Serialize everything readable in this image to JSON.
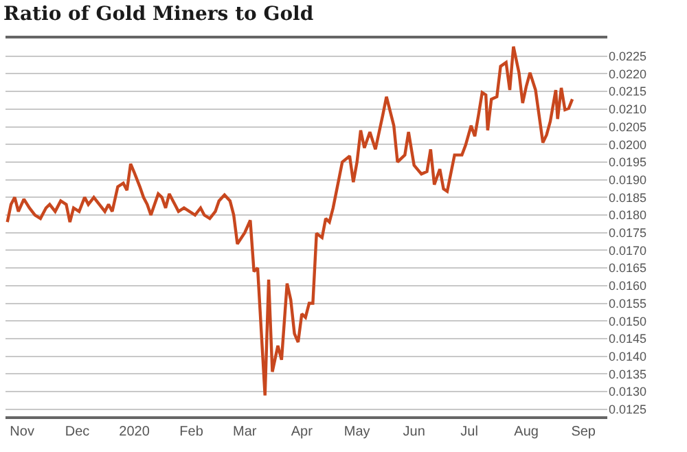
{
  "chart_data": {
    "type": "line",
    "title": "Ratio of Gold Miners to Gold",
    "x": [
      "2019-10-24",
      "2019-10-26",
      "2019-10-28",
      "2019-10-30",
      "2019-11-02",
      "2019-11-05",
      "2019-11-08",
      "2019-11-11",
      "2019-11-14",
      "2019-11-16",
      "2019-11-19",
      "2019-11-22",
      "2019-11-25",
      "2019-11-27",
      "2019-11-29",
      "2019-12-02",
      "2019-12-05",
      "2019-12-07",
      "2019-12-10",
      "2019-12-13",
      "2019-12-16",
      "2019-12-18",
      "2019-12-20",
      "2019-12-23",
      "2019-12-26",
      "2019-12-28",
      "2019-12-30",
      "2020-01-01",
      "2020-01-04",
      "2020-01-06",
      "2020-01-08",
      "2020-01-10",
      "2020-01-12",
      "2020-01-14",
      "2020-01-16",
      "2020-01-18",
      "2020-01-20",
      "2020-01-23",
      "2020-01-25",
      "2020-01-28",
      "2020-01-31",
      "2020-02-03",
      "2020-02-06",
      "2020-02-08",
      "2020-02-11",
      "2020-02-14",
      "2020-02-16",
      "2020-02-19",
      "2020-02-22",
      "2020-02-24",
      "2020-02-26",
      "2020-03-01",
      "2020-03-04",
      "2020-03-06",
      "2020-03-08",
      "2020-03-12",
      "2020-03-14",
      "2020-03-16",
      "2020-03-19",
      "2020-03-21",
      "2020-03-24",
      "2020-03-26",
      "2020-03-28",
      "2020-03-30",
      "2020-04-01",
      "2020-04-03",
      "2020-04-05",
      "2020-04-07",
      "2020-04-09",
      "2020-04-12",
      "2020-04-14",
      "2020-04-16",
      "2020-04-18",
      "2020-04-23",
      "2020-04-27",
      "2020-04-29",
      "2020-05-01",
      "2020-05-03",
      "2020-05-05",
      "2020-05-08",
      "2020-05-11",
      "2020-05-15",
      "2020-05-17",
      "2020-05-21",
      "2020-05-23",
      "2020-05-27",
      "2020-05-29",
      "2020-06-01",
      "2020-06-05",
      "2020-06-08",
      "2020-06-10",
      "2020-06-12",
      "2020-06-15",
      "2020-06-17",
      "2020-06-19",
      "2020-06-23",
      "2020-06-27",
      "2020-06-29",
      "2020-07-02",
      "2020-07-04",
      "2020-07-06",
      "2020-07-08",
      "2020-07-10",
      "2020-07-11",
      "2020-07-13",
      "2020-07-16",
      "2020-07-18",
      "2020-07-21",
      "2020-07-23",
      "2020-07-25",
      "2020-07-28",
      "2020-07-30",
      "2020-08-01",
      "2020-08-03",
      "2020-08-06",
      "2020-08-10",
      "2020-08-12",
      "2020-08-14",
      "2020-08-17",
      "2020-08-18",
      "2020-08-20",
      "2020-08-22",
      "2020-08-24",
      "2020-08-26"
    ],
    "series": [
      {
        "color": "#c8471e",
        "values": [
          0.0178,
          0.0183,
          0.0185,
          0.0181,
          0.01845,
          0.0182,
          0.018,
          0.0179,
          0.0182,
          0.0183,
          0.0181,
          0.0184,
          0.0183,
          0.0178,
          0.0182,
          0.0181,
          0.0185,
          0.0183,
          0.0185,
          0.0183,
          0.0181,
          0.0183,
          0.0181,
          0.0188,
          0.0189,
          0.0187,
          0.01945,
          0.0192,
          0.0188,
          0.0185,
          0.0183,
          0.018,
          0.0183,
          0.0186,
          0.0185,
          0.0182,
          0.0186,
          0.0183,
          0.0181,
          0.0182,
          0.0181,
          0.018,
          0.0182,
          0.018,
          0.0179,
          0.0181,
          0.0184,
          0.01857,
          0.0184,
          0.018,
          0.01718,
          0.0175,
          0.01785,
          0.0164,
          0.0165,
          0.01289,
          0.01617,
          0.01356,
          0.0143,
          0.0139,
          0.01606,
          0.0156,
          0.01464,
          0.0144,
          0.0152,
          0.0151,
          0.0155,
          0.0155,
          0.01748,
          0.01736,
          0.0179,
          0.0178,
          0.0182,
          0.0195,
          0.01967,
          0.01893,
          0.0195,
          0.0204,
          0.0199,
          0.02035,
          0.01986,
          0.02083,
          0.02135,
          0.02053,
          0.0195,
          0.0197,
          0.02035,
          0.01941,
          0.01916,
          0.01923,
          0.01986,
          0.01886,
          0.0193,
          0.01874,
          0.01867,
          0.0197,
          0.0197,
          0.01998,
          0.02053,
          0.02023,
          0.02083,
          0.02147,
          0.0214,
          0.0204,
          0.02128,
          0.02135,
          0.02221,
          0.02232,
          0.02154,
          0.02277,
          0.02203,
          0.02117,
          0.02165,
          0.02203,
          0.02154,
          0.02005,
          0.02027,
          0.02065,
          0.02154,
          0.02072,
          0.0216,
          0.02098,
          0.02102,
          0.02128
        ]
      }
    ],
    "xlim": [
      "2019-10-23",
      "2020-09-14"
    ],
    "xticks": [
      {
        "value": "2019-11-01",
        "label": "Nov"
      },
      {
        "value": "2019-12-01",
        "label": "Dec"
      },
      {
        "value": "2020-01-01",
        "label": "2020"
      },
      {
        "value": "2020-02-01",
        "label": "Feb"
      },
      {
        "value": "2020-03-01",
        "label": "Mar"
      },
      {
        "value": "2020-04-01",
        "label": "Apr"
      },
      {
        "value": "2020-05-01",
        "label": "May"
      },
      {
        "value": "2020-06-01",
        "label": "Jun"
      },
      {
        "value": "2020-07-01",
        "label": "Jul"
      },
      {
        "value": "2020-08-01",
        "label": "Aug"
      },
      {
        "value": "2020-09-01",
        "label": "Sep"
      }
    ],
    "ylim": [
      0.0123,
      0.023
    ],
    "yticks": [
      {
        "value": 0.0125,
        "label": "0.0125"
      },
      {
        "value": 0.013,
        "label": "0.0130"
      },
      {
        "value": 0.0135,
        "label": "0.0135"
      },
      {
        "value": 0.014,
        "label": "0.0140"
      },
      {
        "value": 0.0145,
        "label": "0.0145"
      },
      {
        "value": 0.015,
        "label": "0.0150"
      },
      {
        "value": 0.0155,
        "label": "0.0155"
      },
      {
        "value": 0.016,
        "label": "0.0160"
      },
      {
        "value": 0.0165,
        "label": "0.0165"
      },
      {
        "value": 0.017,
        "label": "0.0170"
      },
      {
        "value": 0.0175,
        "label": "0.0175"
      },
      {
        "value": 0.018,
        "label": "0.0180"
      },
      {
        "value": 0.0185,
        "label": "0.0185"
      },
      {
        "value": 0.019,
        "label": "0.0190"
      },
      {
        "value": 0.0195,
        "label": "0.0195"
      },
      {
        "value": 0.02,
        "label": "0.0200"
      },
      {
        "value": 0.0205,
        "label": "0.0205"
      },
      {
        "value": 0.021,
        "label": "0.0210"
      },
      {
        "value": 0.0215,
        "label": "0.0215"
      },
      {
        "value": 0.022,
        "label": "0.0220"
      },
      {
        "value": 0.0225,
        "label": "0.0225"
      }
    ],
    "grid": "y",
    "marker": "none",
    "line_style": "solid"
  }
}
